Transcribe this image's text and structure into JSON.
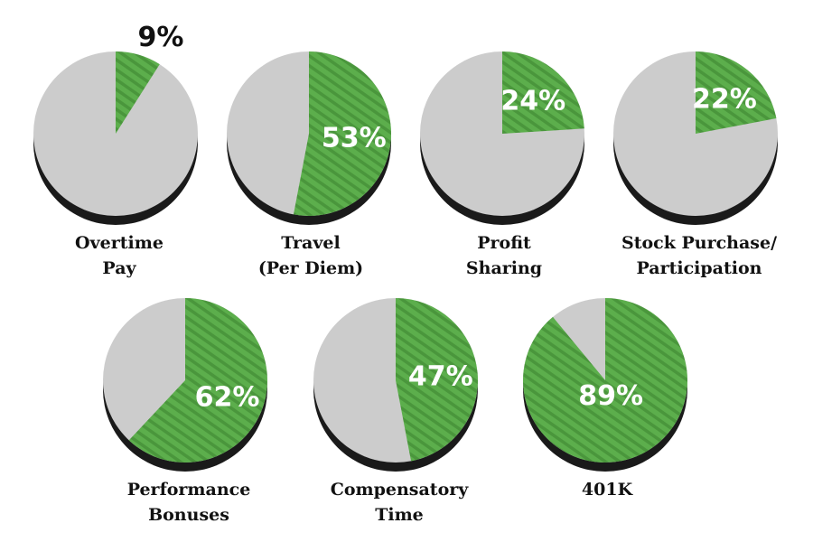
{
  "chart_data": {
    "type": "pie",
    "colors": {
      "highlight": "#5cae4c",
      "stripe": "#4a963c",
      "remainder": "#cccccc",
      "shadow": "#1a1a1a"
    },
    "charts": [
      {
        "label_lines": [
          "Overtime",
          "Pay"
        ],
        "value": 9,
        "value_label": "9%"
      },
      {
        "label_lines": [
          "Travel",
          "(Per Diem)"
        ],
        "value": 53,
        "value_label": "53%"
      },
      {
        "label_lines": [
          "Profit",
          "Sharing"
        ],
        "value": 24,
        "value_label": "24%"
      },
      {
        "label_lines": [
          "Stock Purchase/",
          "Participation"
        ],
        "value": 22,
        "value_label": "22%"
      },
      {
        "label_lines": [
          "Performance",
          "Bonuses"
        ],
        "value": 62,
        "value_label": "62%"
      },
      {
        "label_lines": [
          "Compensatory",
          "Time"
        ],
        "value": 47,
        "value_label": "47%"
      },
      {
        "label_lines": [
          "401K"
        ],
        "value": 89,
        "value_label": "89%"
      }
    ]
  }
}
